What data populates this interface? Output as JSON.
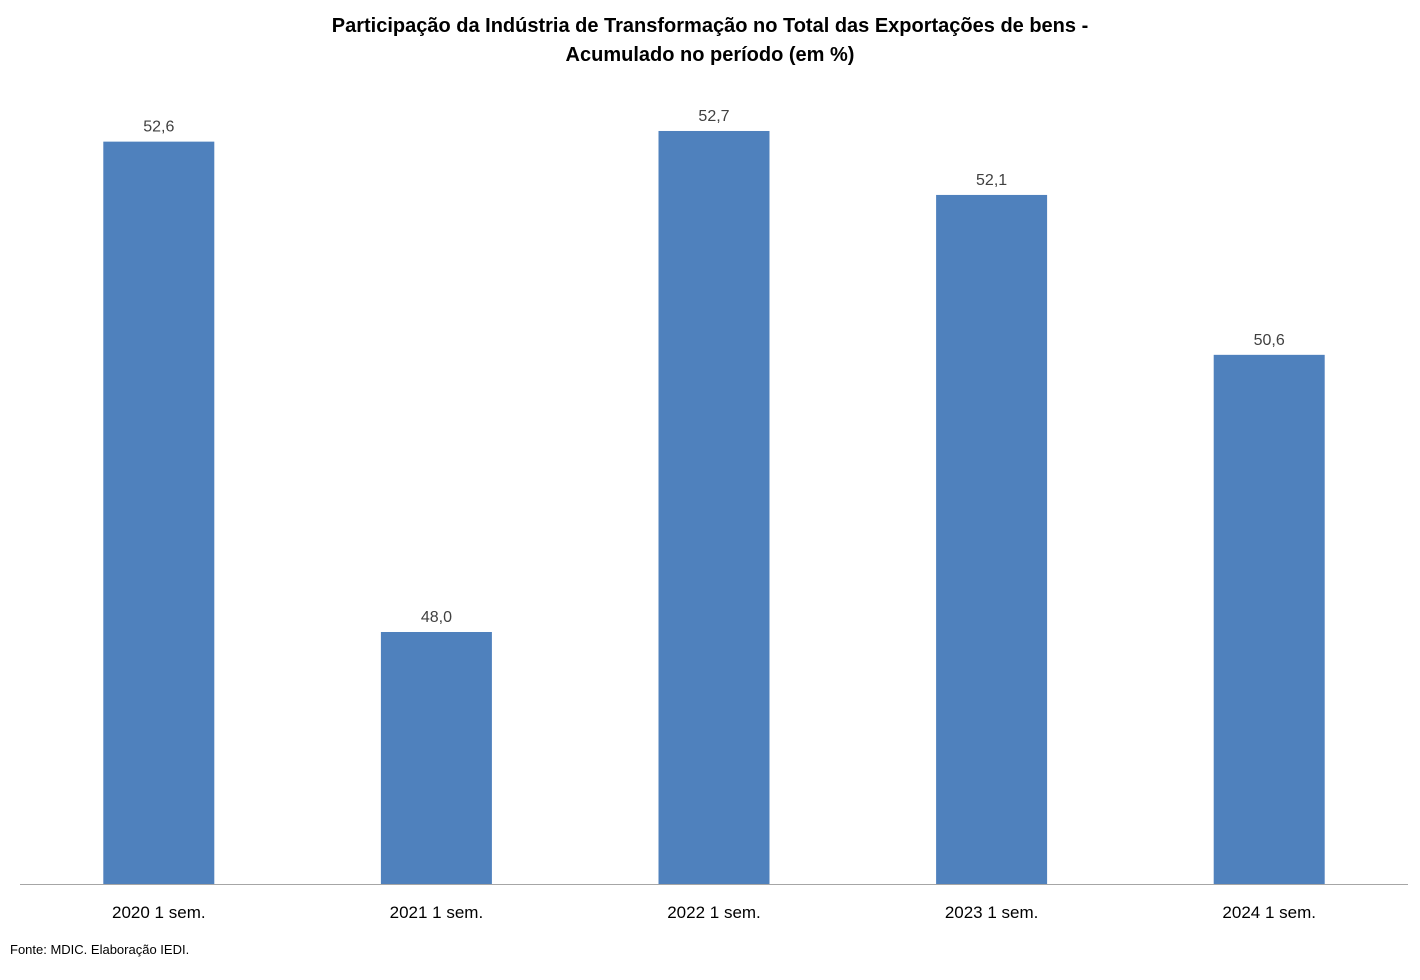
{
  "chart_data": {
    "type": "bar",
    "title": "Participação da Indústria de Transformação no Total das Exportações de bens -",
    "subtitle": "Acumulado no período  (em %)",
    "categories": [
      "2020 1 sem.",
      "2021 1 sem.",
      "2022 1 sem.",
      "2023 1 sem.",
      "2024 1 sem."
    ],
    "values": [
      52.6,
      48.0,
      52.7,
      52.1,
      50.6
    ],
    "data_labels": [
      "52,6",
      "48,0",
      "52,7",
      "52,1",
      "50,6"
    ],
    "xlabel": "",
    "ylabel": "",
    "grid": false,
    "legend": "none",
    "bar_color": "#4F81BD",
    "axis_color": "#A6A6A6"
  },
  "footer": {
    "source": "Fonte: MDIC. Elaboração IEDI."
  }
}
